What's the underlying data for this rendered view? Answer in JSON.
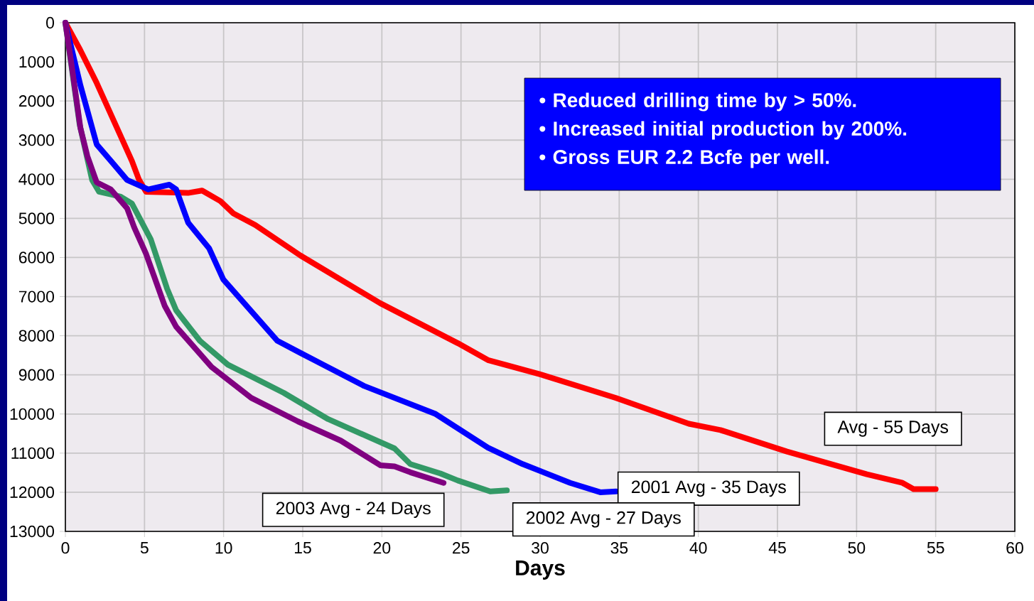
{
  "chart_data": {
    "type": "line",
    "xlabel": "Days",
    "xlim": [
      0,
      60
    ],
    "xticks": [
      0,
      5,
      10,
      15,
      20,
      25,
      30,
      35,
      40,
      45,
      50,
      55,
      60
    ],
    "ylim": [
      13000,
      0
    ],
    "yticks": [
      0,
      1000,
      2000,
      3000,
      4000,
      5000,
      6000,
      7000,
      8000,
      9000,
      10000,
      11000,
      12000,
      13000
    ],
    "grid": true,
    "annotations": [
      "• Reduced drilling time by > 50%.",
      "• Increased initial production by 200%.",
      "• Gross EUR 2.2 Bcfe per well."
    ],
    "series": [
      {
        "name": "Avg - 55 Days",
        "color": "#ff0000",
        "x": [
          0,
          0.93,
          1.98,
          4.2,
          4.65,
          5.1,
          7.75,
          8.64,
          9.8,
          10.6,
          12.0,
          14.86,
          19.9,
          24.8,
          26.7,
          29.96,
          34.8,
          39.4,
          41.4,
          45.6,
          50.65,
          52.9,
          53.6,
          55
        ],
        "values": [
          0,
          690,
          1540,
          3530,
          4010,
          4320,
          4350,
          4290,
          4560,
          4870,
          5170,
          5950,
          7170,
          8190,
          8620,
          8980,
          9590,
          10250,
          10410,
          10960,
          11540,
          11760,
          11920,
          11920
        ]
      },
      {
        "name": "2001 Avg - 35 Days",
        "color": "#0000ff",
        "x": [
          0,
          0.95,
          1.98,
          2.87,
          3.9,
          5.24,
          6.57,
          7.0,
          7.76,
          9.09,
          9.98,
          13.4,
          14.86,
          18.86,
          23.4,
          26.7,
          28.9,
          31.9,
          33.8,
          34.8
        ],
        "values": [
          0,
          1600,
          3110,
          3530,
          4020,
          4260,
          4140,
          4260,
          5110,
          5770,
          6560,
          8130,
          8440,
          9280,
          10000,
          10860,
          11280,
          11760,
          12000,
          11980
        ]
      },
      {
        "name": "2002 Avg - 27 Days",
        "color": "#339966",
        "x": [
          0,
          0.9,
          1.69,
          2.13,
          3.46,
          4.2,
          5.39,
          6.43,
          7.0,
          8.5,
          10.27,
          11.75,
          13.8,
          16.6,
          20.8,
          21.8,
          23.7,
          24.8,
          26.85,
          27.9
        ],
        "values": [
          0,
          2600,
          4020,
          4320,
          4440,
          4620,
          5530,
          6800,
          7350,
          8130,
          8740,
          9040,
          9460,
          10130,
          10880,
          11280,
          11520,
          11700,
          11980,
          11950
        ]
      },
      {
        "name": "2003 Avg - 24 Days",
        "color": "#800080",
        "x": [
          0,
          0.36,
          0.95,
          1.39,
          1.98,
          2.87,
          3.9,
          4.35,
          5.09,
          6.27,
          7.0,
          9.24,
          11.75,
          14.7,
          17.4,
          19.9,
          20.8,
          21.8,
          23.9
        ],
        "values": [
          0,
          990,
          2690,
          3410,
          4080,
          4260,
          4740,
          5230,
          5900,
          7230,
          7770,
          8800,
          9590,
          10190,
          10680,
          11310,
          11340,
          11490,
          11760
        ]
      }
    ]
  }
}
